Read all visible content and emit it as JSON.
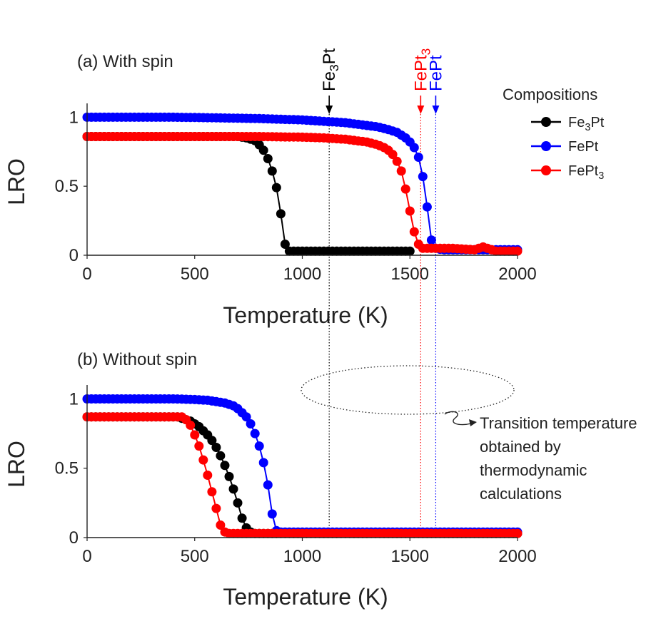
{
  "chart_data": [
    {
      "type": "line",
      "panel": "a",
      "title": "(a) With spin",
      "xlabel": "Temperature (K)",
      "ylabel": "LRO",
      "xlim": [
        0,
        2000
      ],
      "ylim": [
        0,
        1.1
      ],
      "xticks": [
        0,
        500,
        1000,
        1500,
        2000
      ],
      "xtick_labels": [
        "0",
        "500",
        "1000",
        "1500",
        "2000"
      ],
      "yticks": [
        0,
        0.5,
        1
      ],
      "ytick_labels": [
        "0",
        "0.5",
        "1"
      ],
      "series": [
        {
          "name": "Fe3Pt",
          "color": "#000000",
          "x": [
            0,
            700,
            720,
            740,
            760,
            780,
            800,
            820,
            840,
            860,
            880,
            900,
            920,
            940,
            960,
            980,
            1000,
            1100,
            1200,
            1300,
            1400,
            1500
          ],
          "y": [
            0.86,
            0.86,
            0.855,
            0.85,
            0.84,
            0.83,
            0.8,
            0.76,
            0.7,
            0.61,
            0.49,
            0.3,
            0.08,
            0.03,
            0.03,
            0.03,
            0.03,
            0.03,
            0.03,
            0.03,
            0.03,
            0.03
          ]
        },
        {
          "name": "FePt",
          "color": "#0000ff",
          "x": [
            0,
            200,
            400,
            600,
            800,
            1000,
            1100,
            1150,
            1200,
            1250,
            1300,
            1350,
            1400,
            1420,
            1440,
            1460,
            1480,
            1500,
            1520,
            1540,
            1560,
            1580,
            1600,
            1620,
            1650,
            1700,
            1800,
            1900,
            2000
          ],
          "y": [
            1.0,
            1.0,
            1.0,
            0.995,
            0.99,
            0.98,
            0.97,
            0.965,
            0.96,
            0.95,
            0.94,
            0.93,
            0.91,
            0.9,
            0.89,
            0.87,
            0.85,
            0.82,
            0.78,
            0.71,
            0.57,
            0.35,
            0.11,
            0.05,
            0.04,
            0.04,
            0.04,
            0.04,
            0.04
          ]
        },
        {
          "name": "FePt3",
          "color": "#ff0000",
          "x": [
            0,
            400,
            800,
            1000,
            1100,
            1200,
            1250,
            1300,
            1350,
            1380,
            1400,
            1420,
            1440,
            1460,
            1480,
            1500,
            1520,
            1540,
            1560,
            1580,
            1600,
            1700,
            1800,
            1840,
            1900,
            2000
          ],
          "y": [
            0.86,
            0.86,
            0.86,
            0.855,
            0.85,
            0.84,
            0.83,
            0.82,
            0.8,
            0.78,
            0.76,
            0.73,
            0.68,
            0.61,
            0.48,
            0.32,
            0.17,
            0.08,
            0.05,
            0.05,
            0.05,
            0.05,
            0.04,
            0.06,
            0.03,
            0.03
          ]
        }
      ],
      "vlines": [
        {
          "label_main": "Fe",
          "label_sub": "3",
          "label_tail": "Pt",
          "x": 1125,
          "color": "#000000"
        },
        {
          "label_main": "FePt",
          "label_sub": "3",
          "label_tail": "",
          "x": 1550,
          "color": "#ff0000"
        },
        {
          "label_main": "FePt",
          "label_sub": "",
          "label_tail": "",
          "x": 1620,
          "color": "#0000ff"
        }
      ],
      "legend": {
        "title": "Compositions",
        "placement": "top-right",
        "entries": [
          {
            "main": "Fe",
            "sub": "3",
            "tail": "Pt",
            "color": "#000000"
          },
          {
            "main": "FePt",
            "sub": "",
            "tail": "",
            "color": "#0000ff"
          },
          {
            "main": "FePt",
            "sub": "3",
            "tail": "",
            "color": "#ff0000"
          }
        ]
      }
    },
    {
      "type": "line",
      "panel": "b",
      "title": "(b) Without spin",
      "xlabel": "Temperature (K)",
      "ylabel": "LRO",
      "xlim": [
        0,
        2000
      ],
      "ylim": [
        0,
        1.1
      ],
      "xticks": [
        0,
        500,
        1000,
        1500,
        2000
      ],
      "xtick_labels": [
        "0",
        "500",
        "1000",
        "1500",
        "2000"
      ],
      "yticks": [
        0,
        0.5,
        1
      ],
      "ytick_labels": [
        "0",
        "0.5",
        "1"
      ],
      "series": [
        {
          "name": "Fe3Pt",
          "color": "#000000",
          "x": [
            0,
            420,
            440,
            460,
            480,
            500,
            520,
            540,
            560,
            580,
            600,
            620,
            640,
            660,
            680,
            700,
            720,
            740,
            760,
            780,
            800,
            900,
            1000,
            1200,
            1500,
            1700,
            2000
          ],
          "y": [
            0.87,
            0.87,
            0.86,
            0.85,
            0.84,
            0.82,
            0.8,
            0.77,
            0.74,
            0.7,
            0.65,
            0.59,
            0.52,
            0.44,
            0.35,
            0.25,
            0.14,
            0.07,
            0.04,
            0.03,
            0.03,
            0.03,
            0.03,
            0.03,
            0.03,
            0.03,
            0.03
          ]
        },
        {
          "name": "FePt",
          "color": "#0000ff",
          "x": [
            0,
            400,
            500,
            560,
            600,
            640,
            680,
            700,
            720,
            740,
            760,
            780,
            800,
            820,
            840,
            860,
            880,
            900,
            1000,
            1100,
            1200,
            1400,
            1600,
            1800,
            2000
          ],
          "y": [
            1.0,
            1.0,
            0.995,
            0.99,
            0.98,
            0.97,
            0.95,
            0.93,
            0.9,
            0.87,
            0.82,
            0.75,
            0.66,
            0.54,
            0.38,
            0.17,
            0.05,
            0.04,
            0.04,
            0.04,
            0.04,
            0.04,
            0.04,
            0.04,
            0.04
          ]
        },
        {
          "name": "FePt3",
          "color": "#ff0000",
          "x": [
            0,
            440,
            460,
            480,
            500,
            520,
            540,
            560,
            580,
            600,
            620,
            640,
            660,
            680,
            700,
            800,
            1000,
            1200,
            1500,
            2000
          ],
          "y": [
            0.87,
            0.87,
            0.85,
            0.81,
            0.74,
            0.66,
            0.56,
            0.45,
            0.33,
            0.21,
            0.09,
            0.04,
            0.03,
            0.03,
            0.03,
            0.03,
            0.03,
            0.03,
            0.03,
            0.03
          ]
        }
      ],
      "annotation": {
        "lines": [
          "Transition temperature",
          "obtained by",
          "thermodynamic",
          "calculations"
        ]
      }
    }
  ]
}
